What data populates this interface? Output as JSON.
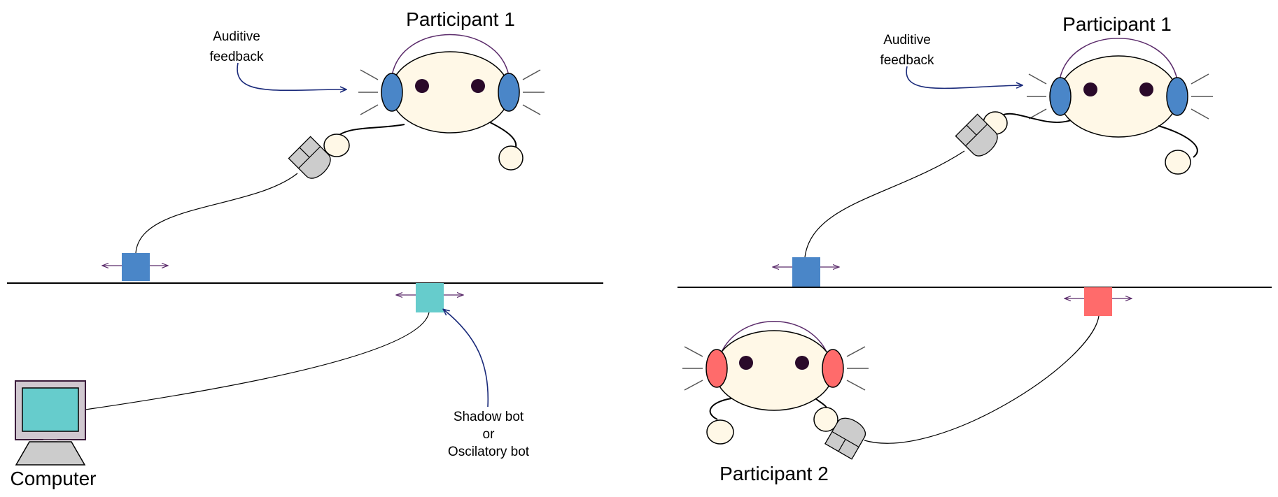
{
  "left_panel": {
    "participant_label": "Participant 1",
    "feedback_line1": "Auditive",
    "feedback_line2": "feedback",
    "bot_line1": "Shadow bot",
    "bot_line2": "or",
    "bot_line3": "Oscilatory bot",
    "computer_label": "Computer"
  },
  "right_panel": {
    "participant1_label": "Participant 1",
    "feedback_line1": "Auditive",
    "feedback_line2": "feedback",
    "participant2_label": "Participant 2"
  },
  "colors": {
    "participant1": "#4a86c8",
    "participant2": "#ff6b6b",
    "computer_bot": "#66cccc",
    "face": "#fff8e7",
    "mouse": "#cccccc",
    "headband": "#5a2a6a",
    "arrow": "#1a2a7a"
  }
}
